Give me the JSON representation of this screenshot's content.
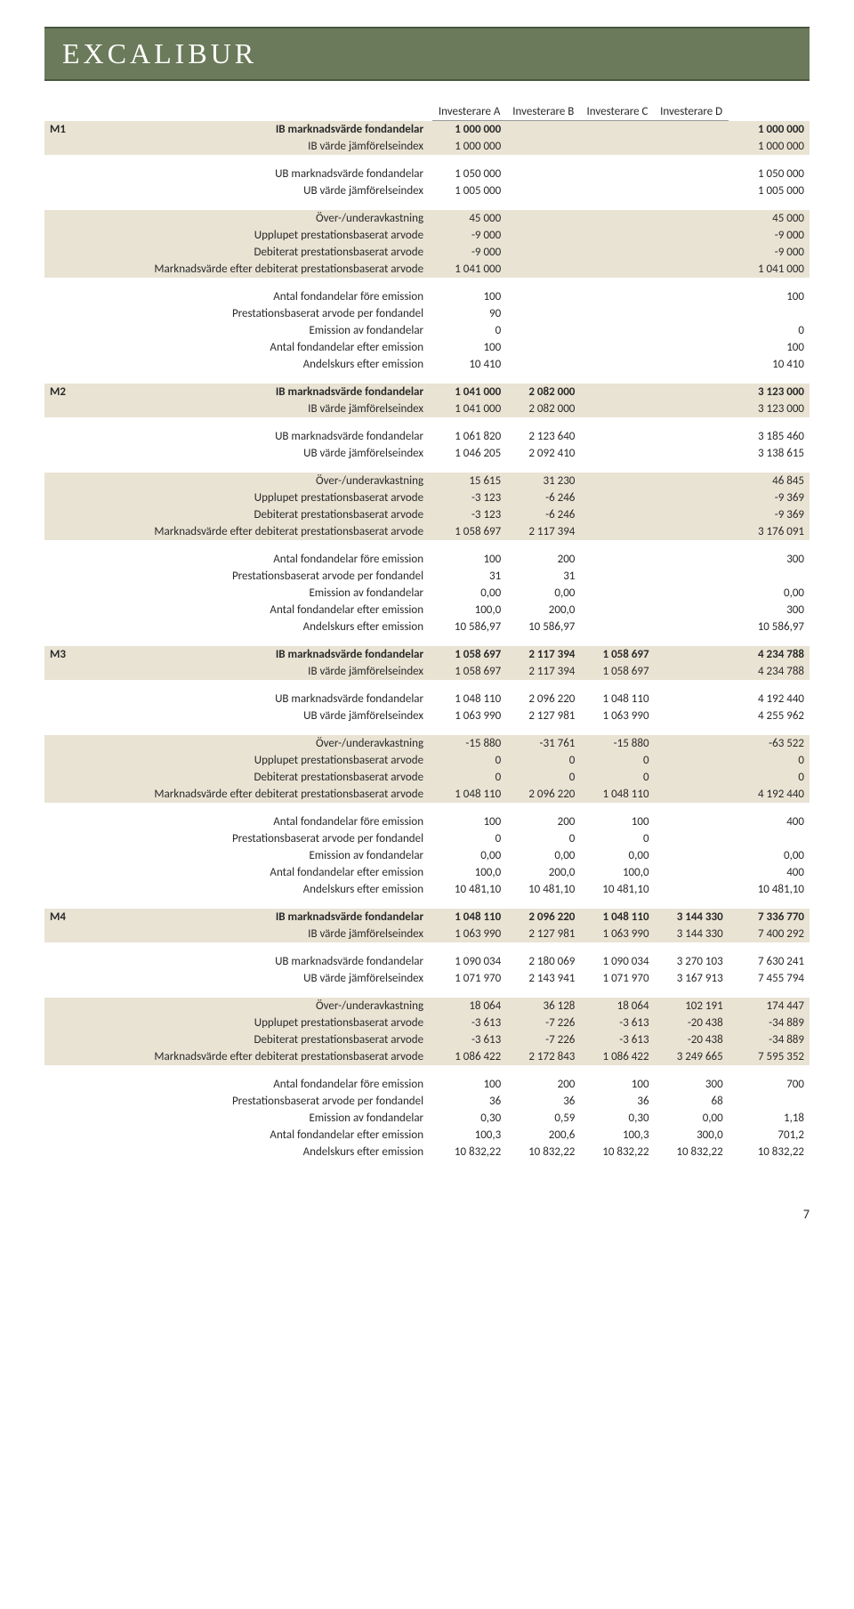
{
  "header": {
    "title": "EXCALIBUR"
  },
  "columns": [
    "Investerare A",
    "Investerare B",
    "Investerare C",
    "Investerare D",
    ""
  ],
  "periods": [
    {
      "id": "M1",
      "groups": [
        {
          "shaded": true,
          "rows": [
            {
              "label": "IB marknadsvärde fondandelar",
              "bold": true,
              "v": [
                "1 000 000",
                "",
                "",
                "",
                "1 000 000"
              ]
            },
            {
              "label": "IB värde jämförelseindex",
              "v": [
                "1 000 000",
                "",
                "",
                "",
                "1 000 000"
              ]
            }
          ]
        },
        {
          "rows": [
            {
              "label": "UB marknadsvärde fondandelar",
              "v": [
                "1 050 000",
                "",
                "",
                "",
                "1 050 000"
              ]
            },
            {
              "label": "UB värde jämförelseindex",
              "v": [
                "1 005 000",
                "",
                "",
                "",
                "1 005 000"
              ]
            }
          ]
        },
        {
          "shaded": true,
          "rows": [
            {
              "label": "Över-/underavkastning",
              "v": [
                "45 000",
                "",
                "",
                "",
                "45 000"
              ]
            },
            {
              "label": "Upplupet prestationsbaserat arvode",
              "v": [
                "-9 000",
                "",
                "",
                "",
                "-9 000"
              ]
            },
            {
              "label": "Debiterat prestationsbaserat arvode",
              "v": [
                "-9 000",
                "",
                "",
                "",
                "-9 000"
              ]
            },
            {
              "label": "Marknadsvärde efter debiterat prestationsbaserat arvode",
              "v": [
                "1 041 000",
                "",
                "",
                "",
                "1 041 000"
              ]
            }
          ]
        },
        {
          "rows": [
            {
              "label": "Antal fondandelar före emission",
              "v": [
                "100",
                "",
                "",
                "",
                "100"
              ]
            },
            {
              "label": "Prestationsbaserat arvode per fondandel",
              "v": [
                "90",
                "",
                "",
                "",
                ""
              ]
            },
            {
              "label": "Emission av fondandelar",
              "v": [
                "0",
                "",
                "",
                "",
                "0"
              ]
            },
            {
              "label": "Antal fondandelar efter emission",
              "v": [
                "100",
                "",
                "",
                "",
                "100"
              ]
            },
            {
              "label": "Andelskurs efter emission",
              "v": [
                "10 410",
                "",
                "",
                "",
                "10 410"
              ]
            }
          ]
        }
      ]
    },
    {
      "id": "M2",
      "groups": [
        {
          "shaded": true,
          "rows": [
            {
              "label": "IB marknadsvärde fondandelar",
              "bold": true,
              "v": [
                "1 041 000",
                "2 082 000",
                "",
                "",
                "3 123 000"
              ]
            },
            {
              "label": "IB värde jämförelseindex",
              "v": [
                "1 041 000",
                "2 082 000",
                "",
                "",
                "3 123 000"
              ]
            }
          ]
        },
        {
          "rows": [
            {
              "label": "UB marknadsvärde fondandelar",
              "v": [
                "1 061 820",
                "2 123 640",
                "",
                "",
                "3 185 460"
              ]
            },
            {
              "label": "UB värde jämförelseindex",
              "v": [
                "1 046 205",
                "2 092 410",
                "",
                "",
                "3 138 615"
              ]
            }
          ]
        },
        {
          "shaded": true,
          "rows": [
            {
              "label": "Över-/underavkastning",
              "v": [
                "15 615",
                "31 230",
                "",
                "",
                "46 845"
              ]
            },
            {
              "label": "Upplupet prestationsbaserat arvode",
              "v": [
                "-3 123",
                "-6 246",
                "",
                "",
                "-9 369"
              ]
            },
            {
              "label": "Debiterat prestationsbaserat arvode",
              "v": [
                "-3 123",
                "-6 246",
                "",
                "",
                "-9 369"
              ]
            },
            {
              "label": "Marknadsvärde efter debiterat prestationsbaserat arvode",
              "v": [
                "1 058 697",
                "2 117 394",
                "",
                "",
                "3 176 091"
              ]
            }
          ]
        },
        {
          "rows": [
            {
              "label": "Antal fondandelar före emission",
              "v": [
                "100",
                "200",
                "",
                "",
                "300"
              ]
            },
            {
              "label": "Prestationsbaserat arvode per fondandel",
              "v": [
                "31",
                "31",
                "",
                "",
                ""
              ]
            },
            {
              "label": "Emission av fondandelar",
              "v": [
                "0,00",
                "0,00",
                "",
                "",
                "0,00"
              ]
            },
            {
              "label": "Antal fondandelar efter emission",
              "v": [
                "100,0",
                "200,0",
                "",
                "",
                "300"
              ]
            },
            {
              "label": "Andelskurs efter emission",
              "v": [
                "10 586,97",
                "10 586,97",
                "",
                "",
                "10 586,97"
              ]
            }
          ]
        }
      ]
    },
    {
      "id": "M3",
      "groups": [
        {
          "shaded": true,
          "rows": [
            {
              "label": "IB marknadsvärde fondandelar",
              "bold": true,
              "v": [
                "1 058 697",
                "2 117 394",
                "1 058 697",
                "",
                "4 234 788"
              ]
            },
            {
              "label": "IB värde jämförelseindex",
              "v": [
                "1 058 697",
                "2 117 394",
                "1 058 697",
                "",
                "4 234 788"
              ]
            }
          ]
        },
        {
          "rows": [
            {
              "label": "UB marknadsvärde fondandelar",
              "v": [
                "1 048 110",
                "2 096 220",
                "1 048 110",
                "",
                "4 192 440"
              ]
            },
            {
              "label": "UB värde jämförelseindex",
              "v": [
                "1 063 990",
                "2 127 981",
                "1 063 990",
                "",
                "4 255 962"
              ]
            }
          ]
        },
        {
          "shaded": true,
          "rows": [
            {
              "label": "Över-/underavkastning",
              "v": [
                "-15 880",
                "-31 761",
                "-15 880",
                "",
                "-63 522"
              ]
            },
            {
              "label": "Upplupet prestationsbaserat arvode",
              "v": [
                "0",
                "0",
                "0",
                "",
                "0"
              ]
            },
            {
              "label": "Debiterat prestationsbaserat arvode",
              "v": [
                "0",
                "0",
                "0",
                "",
                "0"
              ]
            },
            {
              "label": "Marknadsvärde efter debiterat prestationsbaserat arvode",
              "v": [
                "1 048 110",
                "2 096 220",
                "1 048 110",
                "",
                "4 192 440"
              ]
            }
          ]
        },
        {
          "rows": [
            {
              "label": "Antal fondandelar före emission",
              "v": [
                "100",
                "200",
                "100",
                "",
                "400"
              ]
            },
            {
              "label": "Prestationsbaserat arvode per fondandel",
              "v": [
                "0",
                "0",
                "0",
                "",
                ""
              ]
            },
            {
              "label": "Emission av fondandelar",
              "v": [
                "0,00",
                "0,00",
                "0,00",
                "",
                "0,00"
              ]
            },
            {
              "label": "Antal fondandelar efter emission",
              "v": [
                "100,0",
                "200,0",
                "100,0",
                "",
                "400"
              ]
            },
            {
              "label": "Andelskurs efter emission",
              "v": [
                "10 481,10",
                "10 481,10",
                "10 481,10",
                "",
                "10 481,10"
              ]
            }
          ]
        }
      ]
    },
    {
      "id": "M4",
      "groups": [
        {
          "shaded": true,
          "rows": [
            {
              "label": "IB marknadsvärde fondandelar",
              "bold": true,
              "v": [
                "1 048 110",
                "2 096 220",
                "1 048 110",
                "3 144 330",
                "7 336 770"
              ]
            },
            {
              "label": "IB värde jämförelseindex",
              "v": [
                "1 063 990",
                "2 127 981",
                "1 063 990",
                "3 144 330",
                "7 400 292"
              ]
            }
          ]
        },
        {
          "rows": [
            {
              "label": "UB marknadsvärde fondandelar",
              "v": [
                "1 090 034",
                "2 180 069",
                "1 090 034",
                "3 270 103",
                "7 630 241"
              ]
            },
            {
              "label": "UB värde jämförelseindex",
              "v": [
                "1 071 970",
                "2 143 941",
                "1 071 970",
                "3 167 913",
                "7 455 794"
              ]
            }
          ]
        },
        {
          "shaded": true,
          "rows": [
            {
              "label": "Över-/underavkastning",
              "v": [
                "18 064",
                "36 128",
                "18 064",
                "102 191",
                "174 447"
              ]
            },
            {
              "label": "Upplupet prestationsbaserat arvode",
              "v": [
                "-3 613",
                "-7 226",
                "-3 613",
                "-20 438",
                "-34 889"
              ]
            },
            {
              "label": "Debiterat prestationsbaserat arvode",
              "v": [
                "-3 613",
                "-7 226",
                "-3 613",
                "-20 438",
                "-34 889"
              ]
            },
            {
              "label": "Marknadsvärde efter debiterat prestationsbaserat arvode",
              "v": [
                "1 086 422",
                "2 172 843",
                "1 086 422",
                "3 249 665",
                "7 595 352"
              ]
            }
          ]
        },
        {
          "rows": [
            {
              "label": "Antal fondandelar före emission",
              "v": [
                "100",
                "200",
                "100",
                "300",
                "700"
              ]
            },
            {
              "label": "Prestationsbaserat arvode per fondandel",
              "v": [
                "36",
                "36",
                "36",
                "68",
                ""
              ]
            },
            {
              "label": "Emission av fondandelar",
              "v": [
                "0,30",
                "0,59",
                "0,30",
                "0,00",
                "1,18"
              ]
            },
            {
              "label": "Antal fondandelar efter emission",
              "v": [
                "100,3",
                "200,6",
                "100,3",
                "300,0",
                "701,2"
              ]
            },
            {
              "label": "Andelskurs efter emission",
              "v": [
                "10 832,22",
                "10 832,22",
                "10 832,22",
                "10 832,22",
                "10 832,22"
              ]
            }
          ]
        }
      ]
    }
  ],
  "page_number": "7"
}
